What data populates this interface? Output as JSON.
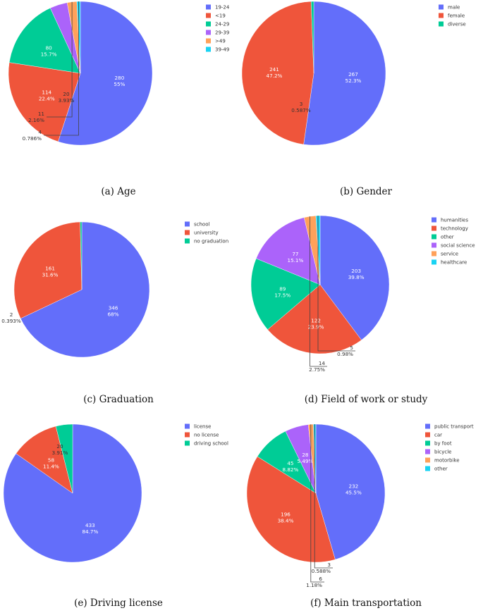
{
  "chart_data": [
    {
      "type": "pie",
      "caption": "(a) Age",
      "labels": [
        "19-24",
        "<19",
        "24-29",
        "29-39",
        ">49",
        "39-49"
      ],
      "values": [
        280,
        114,
        80,
        20,
        11,
        4
      ],
      "percents": [
        "55%",
        "22.4%",
        "15.7%",
        "3.93%",
        "2.16%",
        "0.786%"
      ],
      "colors": [
        "#636efa",
        "#ef553b",
        "#00cc96",
        "#ab63fa",
        "#ffa15a",
        "#19d3f3"
      ]
    },
    {
      "type": "pie",
      "caption": "(b) Gender",
      "labels": [
        "male",
        "female",
        "diverse"
      ],
      "values": [
        267,
        241,
        3
      ],
      "percents": [
        "52.3%",
        "47.2%",
        "0.587%"
      ],
      "colors": [
        "#636efa",
        "#ef553b",
        "#00cc96"
      ]
    },
    {
      "type": "pie",
      "caption": "(c) Graduation",
      "labels": [
        "school",
        "university",
        "no graduation"
      ],
      "values": [
        346,
        161,
        2
      ],
      "percents": [
        "68%",
        "31.6%",
        "0.393%"
      ],
      "colors": [
        "#636efa",
        "#ef553b",
        "#00cc96"
      ]
    },
    {
      "type": "pie",
      "caption": "(d) Field of work or study",
      "labels": [
        "humanities",
        "technology",
        "other",
        "social science",
        "service",
        "healthcare"
      ],
      "values": [
        203,
        122,
        89,
        77,
        14,
        5
      ],
      "percents": [
        "39.8%",
        "23.9%",
        "17.5%",
        "15.1%",
        "2.75%",
        "0.98%"
      ],
      "colors": [
        "#636efa",
        "#ef553b",
        "#00cc96",
        "#ab63fa",
        "#ffa15a",
        "#19d3f3"
      ]
    },
    {
      "type": "pie",
      "caption": "(e) Driving license",
      "labels": [
        "license",
        "no license",
        "driving school"
      ],
      "values": [
        433,
        58,
        20
      ],
      "percents": [
        "84.7%",
        "11.4%",
        "3.91%"
      ],
      "colors": [
        "#636efa",
        "#ef553b",
        "#00cc96"
      ]
    },
    {
      "type": "pie",
      "caption": "(f) Main transportation",
      "labels": [
        "public transport",
        "car",
        "by foot",
        "bicycle",
        "motorbike",
        "other"
      ],
      "values": [
        232,
        196,
        45,
        28,
        6,
        3
      ],
      "percents": [
        "45.5%",
        "38.4%",
        "8.82%",
        "5.49%",
        "1.18%",
        "0.588%"
      ],
      "colors": [
        "#636efa",
        "#ef553b",
        "#00cc96",
        "#ab63fa",
        "#ffa15a",
        "#19d3f3"
      ]
    }
  ]
}
